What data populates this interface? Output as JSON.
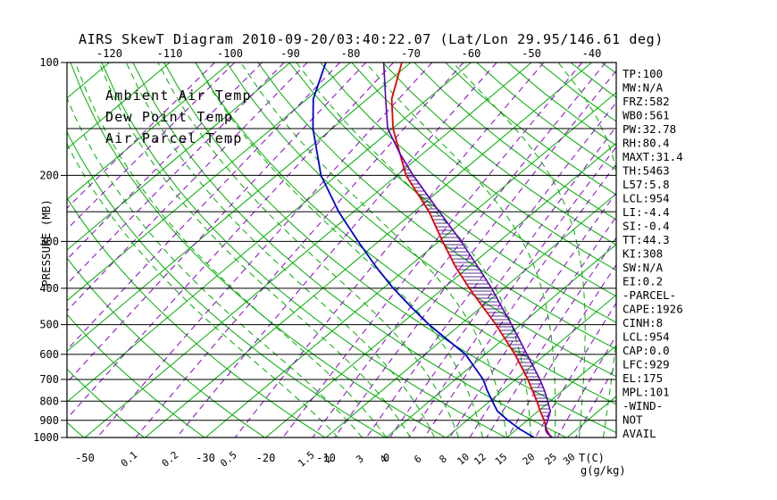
{
  "title": "AIRS SkewT Diagram 2010-09-20/03:40:22.07 (Lat/Lon 29.95/146.61 deg)",
  "colors": {
    "grid_green": "#00AD00",
    "temp_red": "#E60000",
    "dewpoint_blue": "#0000CC",
    "parcel_purple": "#5C00B8",
    "mixing_purple": "#8A00C8",
    "hatch_navy": "#2A0070",
    "axis_black": "#000000"
  },
  "legend": {
    "items": [
      {
        "label": "Ambient Air Temp",
        "color": "#E60000"
      },
      {
        "label": "Dew Point Temp",
        "color": "#0000CC"
      },
      {
        "label": "Air Parcel Temp",
        "color": "#5C00B8"
      }
    ]
  },
  "axes": {
    "pressure_label": "PRESSURE (MB)",
    "pressure_ticks": [
      100,
      200,
      300,
      400,
      500,
      600,
      700,
      800,
      900,
      1000
    ],
    "pressure_minor_lines": [
      150,
      250
    ],
    "top_temp_ticks": [
      -120,
      -110,
      -100,
      -90,
      -80,
      -70,
      -60,
      -50,
      -40
    ],
    "bottom_temp_ticks": [
      -50,
      -30,
      -20,
      -10,
      0
    ],
    "mixing_ratio_labels": [
      0.1,
      0.2,
      0.5,
      1.5,
      2,
      3,
      4,
      6,
      8,
      10,
      12,
      15,
      20,
      25,
      30
    ],
    "temp_unit_label": "T(C)",
    "mixing_unit_label": "g(g/kg)"
  },
  "stats": [
    "TP:100",
    "MW:N/A",
    "FRZ:582",
    "WB0:561",
    "PW:32.78",
    "RH:80.4",
    "MAXT:31.4",
    "TH:5463",
    "L57:5.8",
    "LCL:954",
    "LI:-4.4",
    "SI:-0.4",
    "TT:44.3",
    "KI:308",
    "SW:N/A",
    "EI:0.2",
    "-PARCEL-",
    "CAPE:1926",
    "CINH:8",
    "LCL:954",
    "CAP:0.0",
    "LFC:929",
    "EL:175",
    "MPL:101",
    "-WIND-",
    "NOT",
    "AVAIL"
  ],
  "chart_data": {
    "type": "line",
    "variant": "skew-t-log-p",
    "title": "AIRS SkewT Diagram 2010-09-20/03:40:22.07 (Lat/Lon 29.95/146.61 deg)",
    "pressure_axis": {
      "scale": "log",
      "range_mb": [
        100,
        1000
      ]
    },
    "temperature_axis": {
      "unit": "C",
      "labels_at_100mb": [
        -120,
        -40
      ],
      "labels_at_1000mb": [
        -50,
        0
      ],
      "skewed": true
    },
    "isotherms_C": {
      "min": -160,
      "max": 40,
      "step": 10
    },
    "dry_adiabats_theta_K": {
      "min": 223,
      "max": 453,
      "step": 10
    },
    "moist_adiabat_start_temps_C": [
      -8,
      -4,
      0,
      4,
      8,
      12,
      16,
      20,
      24,
      28,
      32,
      36
    ],
    "mixing_ratio_lines_g_kg": [
      0.0001,
      0.0002,
      0.0005,
      0.001,
      0.002,
      0.005,
      0.01,
      0.02,
      0.05,
      0.1,
      0.2,
      0.5,
      1,
      1.5,
      2,
      3,
      4,
      5,
      6,
      8,
      10,
      12,
      15,
      20,
      25,
      30
    ],
    "series": [
      {
        "name": "Ambient Air Temp",
        "color": "#E60000",
        "points": [
          [
            1000,
            27.3
          ],
          [
            950,
            24.9
          ],
          [
            900,
            22.8
          ],
          [
            850,
            20.3
          ],
          [
            800,
            17.8
          ],
          [
            750,
            15.0
          ],
          [
            700,
            12.0
          ],
          [
            650,
            8.6
          ],
          [
            600,
            4.9
          ],
          [
            550,
            0.6
          ],
          [
            500,
            -4.1
          ],
          [
            450,
            -9.6
          ],
          [
            400,
            -15.7
          ],
          [
            350,
            -22.3
          ],
          [
            300,
            -29.4
          ],
          [
            250,
            -37.5
          ],
          [
            200,
            -48.5
          ],
          [
            175,
            -53.8
          ],
          [
            150,
            -59.9
          ],
          [
            125,
            -66.0
          ],
          [
            100,
            -71.5
          ]
        ]
      },
      {
        "name": "Dew Point Temp",
        "color": "#0000CC",
        "points": [
          [
            1000,
            24.5
          ],
          [
            950,
            20.5
          ],
          [
            900,
            16.8
          ],
          [
            850,
            13.2
          ],
          [
            800,
            10.4
          ],
          [
            750,
            7.5
          ],
          [
            700,
            4.6
          ],
          [
            650,
            0.8
          ],
          [
            600,
            -3.3
          ],
          [
            550,
            -9.0
          ],
          [
            500,
            -15.2
          ],
          [
            450,
            -21.5
          ],
          [
            400,
            -28.3
          ],
          [
            350,
            -35.5
          ],
          [
            300,
            -43.4
          ],
          [
            250,
            -52.5
          ],
          [
            200,
            -62.6
          ],
          [
            150,
            -73.2
          ],
          [
            125,
            -79.0
          ],
          [
            100,
            -84.1
          ]
        ]
      },
      {
        "name": "Air Parcel Temp",
        "color": "#5C00B8",
        "points": [
          [
            1000,
            27.6
          ],
          [
            975,
            25.9
          ],
          [
            954,
            24.9
          ],
          [
            929,
            24.1
          ],
          [
            900,
            23.4
          ],
          [
            850,
            22.0
          ],
          [
            800,
            19.6
          ],
          [
            750,
            17.0
          ],
          [
            700,
            14.0
          ],
          [
            650,
            10.6
          ],
          [
            600,
            6.9
          ],
          [
            550,
            2.9
          ],
          [
            500,
            -1.5
          ],
          [
            450,
            -6.5
          ],
          [
            400,
            -12.0
          ],
          [
            350,
            -18.6
          ],
          [
            300,
            -26.3
          ],
          [
            250,
            -35.8
          ],
          [
            200,
            -47.3
          ],
          [
            175,
            -53.8
          ],
          [
            150,
            -60.8
          ],
          [
            125,
            -67.0
          ],
          [
            100,
            -74.5
          ]
        ]
      }
    ],
    "cape_area": {
      "from_mb": 929,
      "to_mb": 175,
      "between": [
        "Air Parcel Temp",
        "Ambient Air Temp"
      ],
      "style": "horizontal-hatch"
    }
  }
}
